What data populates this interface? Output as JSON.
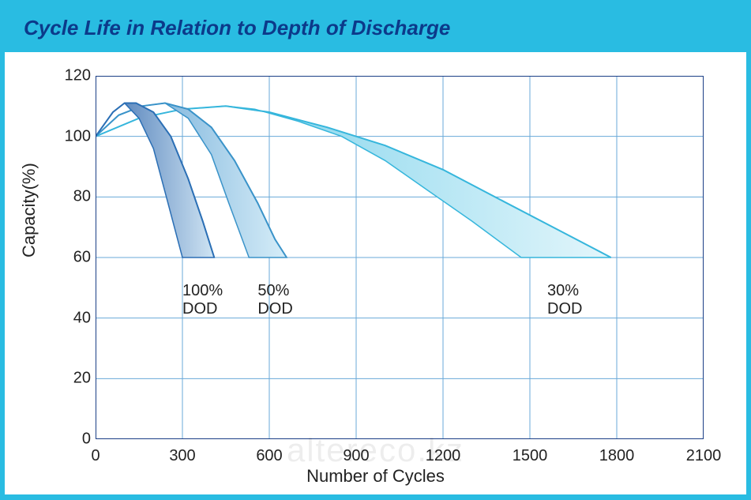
{
  "title": "Cycle Life in Relation to Depth of Discharge",
  "title_color": "#0c3a8a",
  "title_fontsize": 26,
  "outer_bg": "#29bce2",
  "panel_bg": "#ffffff",
  "xlabel": "Number of Cycles",
  "ylabel": "Capacity(%)",
  "label_fontsize": 22,
  "tick_fontsize": 20,
  "xlim": [
    0,
    2100
  ],
  "ylim": [
    0,
    120
  ],
  "xticks": [
    0,
    300,
    600,
    900,
    1200,
    1500,
    1800,
    2100
  ],
  "yticks": [
    0,
    20,
    40,
    60,
    80,
    100,
    120
  ],
  "grid_color": "#6aa9d8",
  "axis_color": "#1b3f86",
  "series": [
    {
      "name": "100% DOD",
      "label_lines": [
        "100%",
        "DOD"
      ],
      "label_x": 300,
      "label_y": 52,
      "stroke": "#2b6fb5",
      "fill_start": "#3d6fb0",
      "fill_end": "#cfe4f3",
      "upper": [
        {
          "x": 0,
          "y": 100
        },
        {
          "x": 60,
          "y": 108
        },
        {
          "x": 100,
          "y": 111
        },
        {
          "x": 140,
          "y": 111
        },
        {
          "x": 200,
          "y": 108
        },
        {
          "x": 260,
          "y": 100
        },
        {
          "x": 320,
          "y": 86
        },
        {
          "x": 370,
          "y": 72
        },
        {
          "x": 410,
          "y": 60
        }
      ],
      "lower": [
        {
          "x": 410,
          "y": 60
        },
        {
          "x": 300,
          "y": 60
        },
        {
          "x": 250,
          "y": 78
        },
        {
          "x": 200,
          "y": 96
        },
        {
          "x": 150,
          "y": 106
        },
        {
          "x": 100,
          "y": 111
        },
        {
          "x": 60,
          "y": 108
        },
        {
          "x": 0,
          "y": 100
        }
      ]
    },
    {
      "name": "50% DOD",
      "label_lines": [
        "50%",
        "DOD"
      ],
      "label_x": 560,
      "label_y": 52,
      "stroke": "#3a93c9",
      "fill_start": "#5a9dd0",
      "fill_end": "#d6edf8",
      "upper": [
        {
          "x": 0,
          "y": 100
        },
        {
          "x": 80,
          "y": 107
        },
        {
          "x": 160,
          "y": 110
        },
        {
          "x": 240,
          "y": 111
        },
        {
          "x": 320,
          "y": 109
        },
        {
          "x": 400,
          "y": 103
        },
        {
          "x": 480,
          "y": 92
        },
        {
          "x": 560,
          "y": 78
        },
        {
          "x": 620,
          "y": 66
        },
        {
          "x": 660,
          "y": 60
        }
      ],
      "lower": [
        {
          "x": 660,
          "y": 60
        },
        {
          "x": 530,
          "y": 60
        },
        {
          "x": 460,
          "y": 78
        },
        {
          "x": 400,
          "y": 94
        },
        {
          "x": 320,
          "y": 106
        },
        {
          "x": 240,
          "y": 111
        },
        {
          "x": 160,
          "y": 110
        },
        {
          "x": 80,
          "y": 107
        },
        {
          "x": 0,
          "y": 100
        }
      ]
    },
    {
      "name": "30% DOD",
      "label_lines": [
        "30%",
        "DOD"
      ],
      "label_x": 1560,
      "label_y": 52,
      "stroke": "#36b6dc",
      "fill_start": "#5fc7e6",
      "fill_end": "#e3f6fb",
      "upper": [
        {
          "x": 0,
          "y": 100
        },
        {
          "x": 150,
          "y": 106
        },
        {
          "x": 300,
          "y": 109
        },
        {
          "x": 450,
          "y": 110
        },
        {
          "x": 600,
          "y": 108
        },
        {
          "x": 800,
          "y": 103
        },
        {
          "x": 1000,
          "y": 97
        },
        {
          "x": 1200,
          "y": 89
        },
        {
          "x": 1400,
          "y": 79
        },
        {
          "x": 1600,
          "y": 69
        },
        {
          "x": 1780,
          "y": 60
        }
      ],
      "lower": [
        {
          "x": 1780,
          "y": 60
        },
        {
          "x": 1470,
          "y": 60
        },
        {
          "x": 1300,
          "y": 72
        },
        {
          "x": 1150,
          "y": 82
        },
        {
          "x": 1000,
          "y": 92
        },
        {
          "x": 850,
          "y": 100
        },
        {
          "x": 700,
          "y": 105
        },
        {
          "x": 550,
          "y": 109
        },
        {
          "x": 450,
          "y": 110
        },
        {
          "x": 300,
          "y": 109
        },
        {
          "x": 150,
          "y": 106
        },
        {
          "x": 0,
          "y": 100
        }
      ]
    }
  ],
  "watermark": "altereco.kz"
}
